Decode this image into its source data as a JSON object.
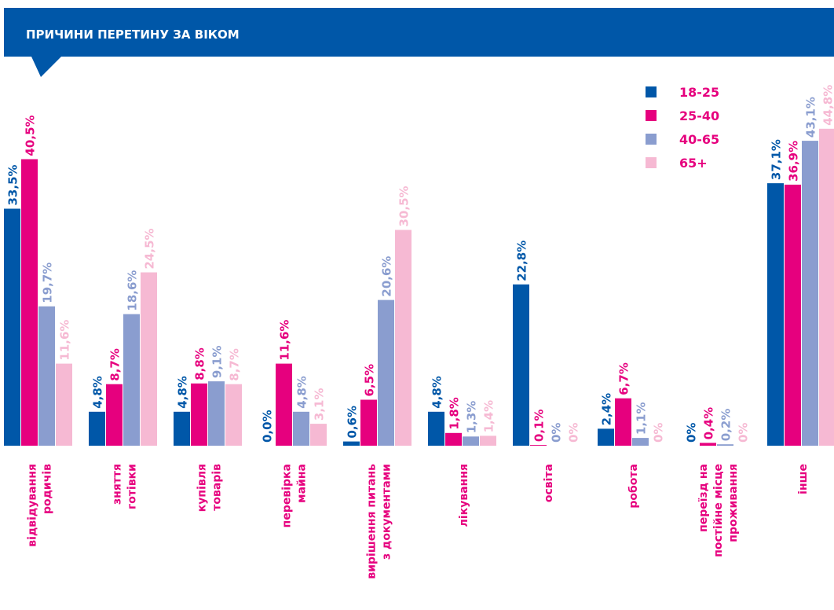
{
  "chart_data": {
    "type": "bar",
    "title": "ПРИЧИНИ ПЕРЕТИНУ ЗА ВІКОМ",
    "categories": [
      [
        "відвідування",
        "родичів"
      ],
      [
        "зняття",
        "готівки"
      ],
      [
        "купівля",
        "товарів"
      ],
      [
        "перевірка",
        "майна"
      ],
      [
        "вирішення питань",
        "з документами"
      ],
      [
        "лікування"
      ],
      [
        "освіта"
      ],
      [
        "робота"
      ],
      [
        "переїзд на",
        "постійне місце",
        "проживання"
      ],
      [
        "інше"
      ]
    ],
    "series": [
      {
        "name": "18-25",
        "color": "#0057a8",
        "values": [
          33.5,
          4.8,
          4.8,
          0.0,
          0.6,
          4.8,
          22.8,
          2.4,
          0,
          37.1
        ],
        "value_labels": [
          "33,5%",
          "4,8%",
          "4,8%",
          "0,0%",
          "0,6%",
          "4,8%",
          "22,8%",
          "2,4%",
          "0%",
          "37,1%"
        ]
      },
      {
        "name": "25-40",
        "color": "#e6007e",
        "values": [
          40.5,
          8.7,
          8.8,
          11.6,
          6.5,
          1.8,
          0.1,
          6.7,
          0.4,
          36.9
        ],
        "value_labels": [
          "40,5%",
          "8,7%",
          "8,8%",
          "11,6%",
          "6,5%",
          "1,8%",
          "0,1%",
          "6,7%",
          "0,4%",
          "36,9%"
        ]
      },
      {
        "name": "40-65",
        "color": "#8a9dcf",
        "values": [
          19.7,
          18.6,
          9.1,
          4.8,
          20.6,
          1.3,
          0,
          1.1,
          0.2,
          43.1
        ],
        "value_labels": [
          "19,7%",
          "18,6%",
          "9,1%",
          "4,8%",
          "20,6%",
          "1,3%",
          "0%",
          "1,1%",
          "0,2%",
          "43,1%"
        ]
      },
      {
        "name": "65+",
        "color": "#f6b9d3",
        "values": [
          11.6,
          24.5,
          8.7,
          3.1,
          30.5,
          1.4,
          0,
          0,
          0,
          44.8
        ],
        "value_labels": [
          "11,6%",
          "24,5%",
          "8,7%",
          "3,1%",
          "30,5%",
          "1,4%",
          "0%",
          "0%",
          "0%",
          "44,8%"
        ]
      }
    ],
    "ylim": [
      0,
      50
    ],
    "category_color": "#e6007e",
    "legend": "upper right"
  }
}
